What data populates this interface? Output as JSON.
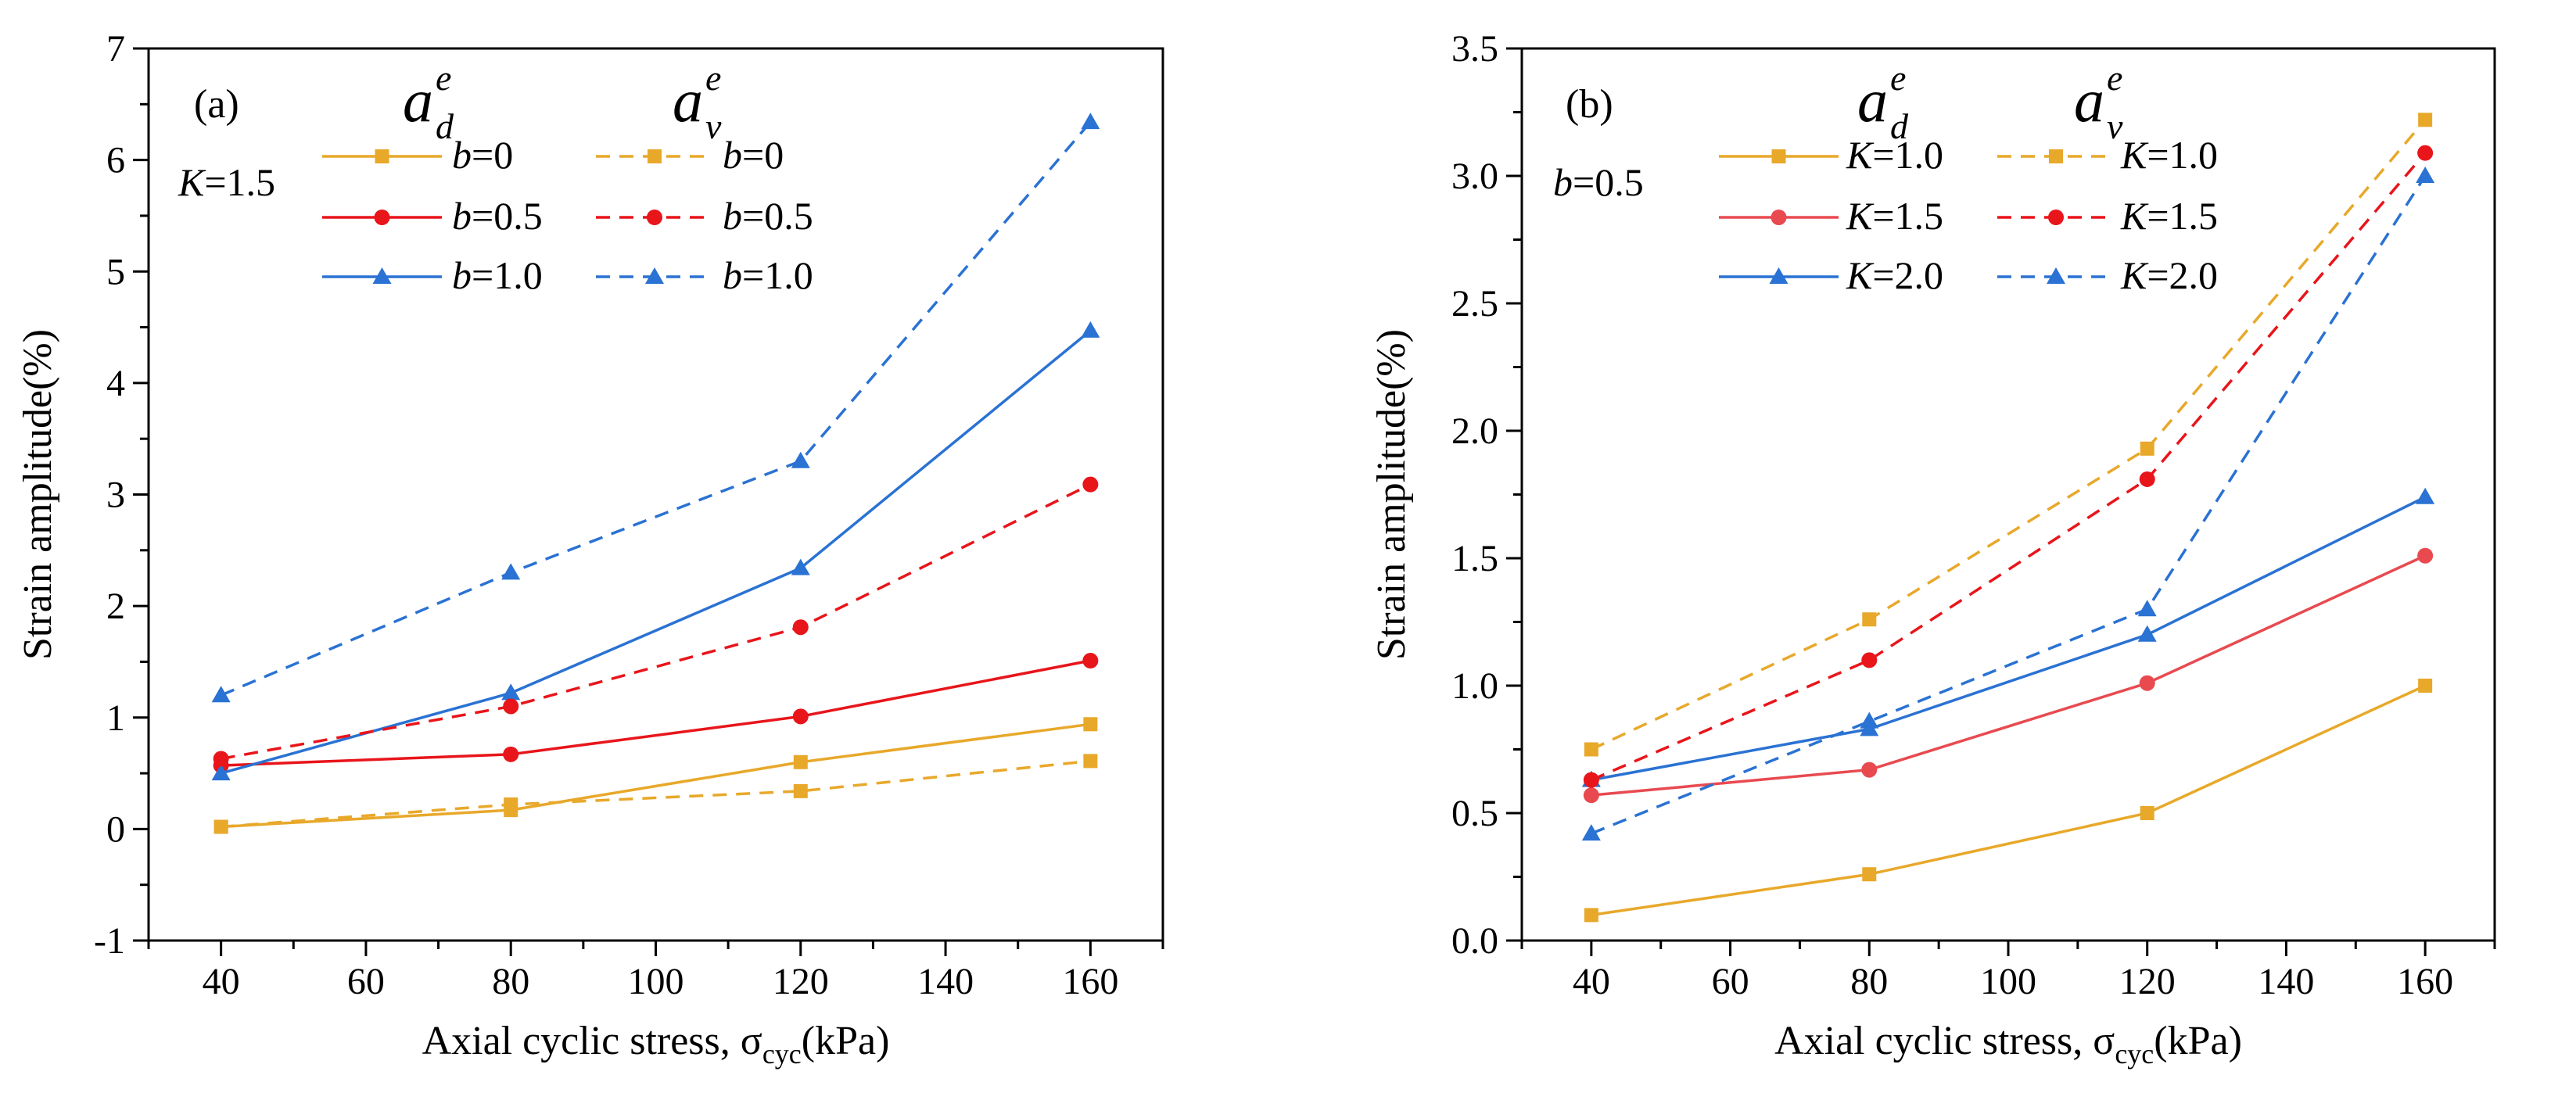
{
  "chart_data": [
    {
      "type": "line",
      "panel_label": "(a)",
      "param_note": {
        "var": "K",
        "value": "=1.5"
      },
      "header": [
        {
          "base": "a",
          "sub": "d",
          "sup": "e"
        },
        {
          "base": "a",
          "sub": "v",
          "sup": "e"
        }
      ],
      "xlabel": {
        "main": "Axial cyclic stress, σ",
        "sub": "cyc",
        "tail": "(kPa)"
      },
      "ylabel": "Strain amplitude(%)",
      "xlim": [
        30,
        170
      ],
      "ylim": [
        -1,
        7
      ],
      "xticks": [
        40,
        60,
        80,
        100,
        120,
        140,
        160
      ],
      "yticks": [
        -1,
        0,
        1,
        2,
        3,
        4,
        5,
        6,
        7
      ],
      "xtick_labels": [
        "40",
        "60",
        "80",
        "100",
        "120",
        "140",
        "160"
      ],
      "ytick_labels": [
        "-1",
        "0",
        "1",
        "2",
        "3",
        "4",
        "5",
        "6",
        "7"
      ],
      "x": [
        40,
        80,
        120,
        160
      ],
      "series": [
        {
          "name": "b=0 (a_d^e)",
          "var": "b",
          "value": "=0",
          "color": "#E8A82A",
          "dash": false,
          "marker": "square",
          "values": [
            0.02,
            0.17,
            0.6,
            0.94
          ]
        },
        {
          "name": "b=0.5 (a_d^e)",
          "var": "b",
          "value": "=0.5",
          "color": "#E8151B",
          "dash": false,
          "marker": "circle",
          "values": [
            0.57,
            0.67,
            1.01,
            1.51
          ]
        },
        {
          "name": "b=1.0 (a_d^e)",
          "var": "b",
          "value": "=1.0",
          "color": "#2A72D3",
          "dash": false,
          "marker": "triangle",
          "values": [
            0.5,
            1.22,
            2.34,
            4.47
          ]
        },
        {
          "name": "b=0 (a_v^e)",
          "var": "b",
          "value": "=0",
          "color": "#E8A82A",
          "dash": true,
          "marker": "square",
          "values": [
            0.02,
            0.22,
            0.34,
            0.61
          ]
        },
        {
          "name": "b=0.5 (a_v^e)",
          "var": "b",
          "value": "=0.5",
          "color": "#E8151B",
          "dash": true,
          "marker": "circle",
          "values": [
            0.63,
            1.1,
            1.81,
            3.09
          ]
        },
        {
          "name": "b=1.0 (a_v^e)",
          "var": "b",
          "value": "=1.0",
          "color": "#2A72D3",
          "dash": true,
          "marker": "triangle",
          "values": [
            1.2,
            2.3,
            3.3,
            6.34
          ]
        }
      ]
    },
    {
      "type": "line",
      "panel_label": "(b)",
      "param_note": {
        "var": "b",
        "value": "=0.5"
      },
      "header": [
        {
          "base": "a",
          "sub": "d",
          "sup": "e"
        },
        {
          "base": "a",
          "sub": "v",
          "sup": "e"
        }
      ],
      "xlabel": {
        "main": "Axial cyclic stress, σ",
        "sub": "cyc",
        "tail": "(kPa)"
      },
      "ylabel": "Strain amplitude(%)",
      "xlim": [
        30,
        170
      ],
      "ylim": [
        0,
        3.5
      ],
      "xticks": [
        40,
        60,
        80,
        100,
        120,
        140,
        160
      ],
      "yticks": [
        0,
        0.5,
        1,
        1.5,
        2,
        2.5,
        3,
        3.5
      ],
      "xtick_labels": [
        "40",
        "60",
        "80",
        "100",
        "120",
        "140",
        "160"
      ],
      "ytick_labels": [
        "0.0",
        "0.5",
        "1.0",
        "1.5",
        "2.0",
        "2.5",
        "3.0",
        "3.5"
      ],
      "x": [
        40,
        80,
        120,
        160
      ],
      "series": [
        {
          "name": "K=1.0 (a_d^e)",
          "var": "K",
          "value": "=1.0",
          "color": "#E8A82A",
          "dash": false,
          "marker": "square",
          "values": [
            0.1,
            0.26,
            0.5,
            1.0
          ]
        },
        {
          "name": "K=1.5 (a_d^e)",
          "var": "K",
          "value": "=1.5",
          "color": "#E84A50",
          "dash": false,
          "marker": "circle",
          "values": [
            0.57,
            0.67,
            1.01,
            1.51
          ]
        },
        {
          "name": "K=2.0 (a_d^e)",
          "var": "K",
          "value": "=2.0",
          "color": "#2A72D3",
          "dash": false,
          "marker": "triangle",
          "values": [
            0.63,
            0.83,
            1.2,
            1.74
          ]
        },
        {
          "name": "K=1.0 (a_v^e)",
          "var": "K",
          "value": "=1.0",
          "color": "#E8A82A",
          "dash": true,
          "marker": "square",
          "values": [
            0.75,
            1.26,
            1.93,
            3.22
          ]
        },
        {
          "name": "K=1.5 (a_v^e)",
          "var": "K",
          "value": "=1.5",
          "color": "#E8151B",
          "dash": true,
          "marker": "circle",
          "values": [
            0.63,
            1.1,
            1.81,
            3.09
          ]
        },
        {
          "name": "K=2.0 (a_v^e)",
          "var": "K",
          "value": "=2.0",
          "color": "#2A72D3",
          "dash": true,
          "marker": "triangle",
          "values": [
            0.42,
            0.86,
            1.3,
            3.0
          ]
        }
      ]
    }
  ]
}
